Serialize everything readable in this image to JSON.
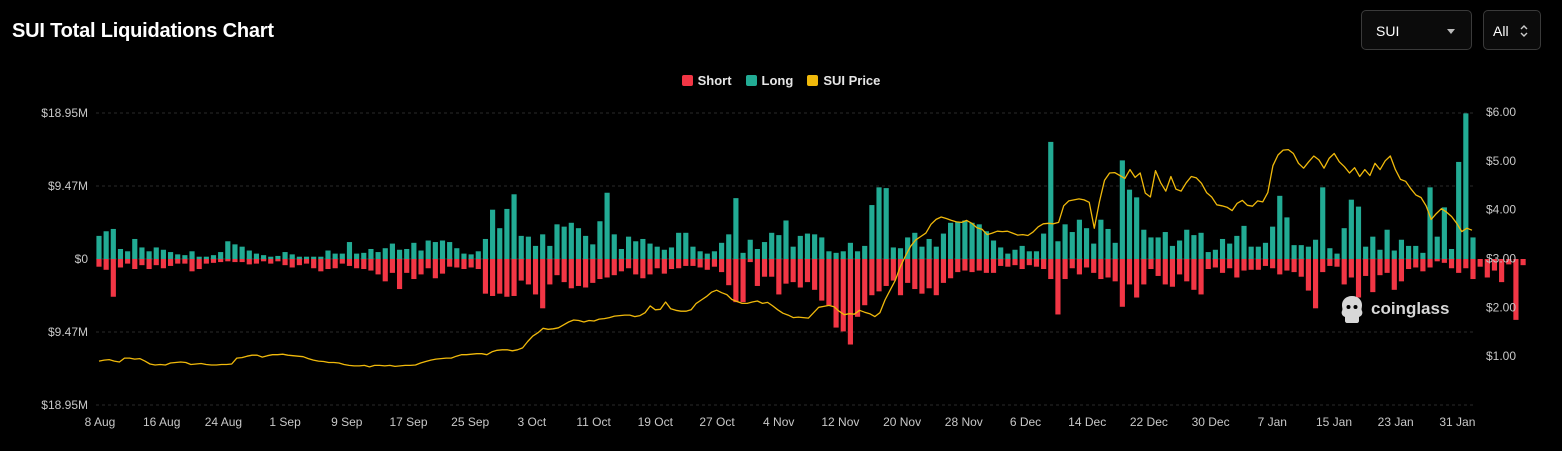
{
  "header": {
    "title": "SUI Total Liquidations Chart"
  },
  "controls": {
    "symbol_select": {
      "value": "SUI"
    },
    "range_select": {
      "value": "All"
    }
  },
  "legend": [
    {
      "label": "Short",
      "color": "#f23645"
    },
    {
      "label": "Long",
      "color": "#22ab94"
    },
    {
      "label": "SUI Price",
      "color": "#f0b90b"
    }
  ],
  "watermark": {
    "text": "coinglass"
  },
  "chart_data": {
    "type": "bar",
    "title": "SUI Total Liquidations Chart",
    "grid": true,
    "legend_position": "top-center",
    "left_axis": {
      "ylim": [
        -18.95,
        18.95
      ],
      "unit": "M",
      "ticks": [
        18.95,
        9.47,
        0,
        -9.47,
        -18.95
      ],
      "tick_labels": [
        "$18.95M",
        "$9.47M",
        "$0",
        "$9.47M",
        "$18.95M"
      ]
    },
    "right_axis": {
      "ylim": [
        0.0,
        6.0
      ],
      "ticks": [
        6,
        5,
        4,
        3,
        2,
        1
      ],
      "tick_labels": [
        "$6.00",
        "$5.00",
        "$4.00",
        "$3.00",
        "$2.00",
        "$1.00"
      ]
    },
    "x_ticks": [
      "8 Aug",
      "16 Aug",
      "24 Aug",
      "1 Sep",
      "9 Sep",
      "17 Sep",
      "25 Sep",
      "3 Oct",
      "11 Oct",
      "19 Oct",
      "27 Oct",
      "4 Nov",
      "12 Nov",
      "20 Nov",
      "28 Nov",
      "6 Dec",
      "14 Dec",
      "22 Dec",
      "30 Dec",
      "7 Jan",
      "15 Jan",
      "23 Jan",
      "31 Jan"
    ],
    "series": [
      {
        "name": "Long",
        "color": "#22ab94",
        "values": [
          3.0,
          3.6,
          3.9,
          1.3,
          1.0,
          2.6,
          1.5,
          1.0,
          1.5,
          1.2,
          0.9,
          0.6,
          0.5,
          1.0,
          0.3,
          0.3,
          0.5,
          0.9,
          2.3,
          1.9,
          1.6,
          1.1,
          0.7,
          0.5,
          0.3,
          0.4,
          0.9,
          0.6,
          0.3,
          0.3,
          0.3,
          0.3,
          1.1,
          0.7,
          0.7,
          2.2,
          0.7,
          0.8,
          1.3,
          0.9,
          1.4,
          2.0,
          1.2,
          1.3,
          2.1,
          1.1,
          2.4,
          2.2,
          2.4,
          2.2,
          1.4,
          0.7,
          0.6,
          1.0,
          2.6,
          6.4,
          4.0,
          6.5,
          8.4,
          3.0,
          2.9,
          1.7,
          3.2,
          1.7,
          4.5,
          4.2,
          4.7,
          4.0,
          3.0,
          1.9,
          4.9,
          8.6,
          3.2,
          1.3,
          2.9,
          2.3,
          2.6,
          2.0,
          1.6,
          1.2,
          1.5,
          3.4,
          3.4,
          1.6,
          1.0,
          0.7,
          1.0,
          2.1,
          3.2,
          7.9,
          0.8,
          2.5,
          1.3,
          2.2,
          3.4,
          3.1,
          5.0,
          1.6,
          3.0,
          3.3,
          3.2,
          2.8,
          1.0,
          0.8,
          1.0,
          2.1,
          1.0,
          1.7,
          7.0,
          9.3,
          9.2,
          1.5,
          1.4,
          2.8,
          3.4,
          1.6,
          2.6,
          1.6,
          3.3,
          4.7,
          4.8,
          5.0,
          4.7,
          4.5,
          3.6,
          2.4,
          1.5,
          0.7,
          1.2,
          1.7,
          1.0,
          1.0,
          3.3,
          15.2,
          2.3,
          4.5,
          3.5,
          5.1,
          4.0,
          2.0,
          5.1,
          3.9,
          2.1,
          12.8,
          9.0,
          8.0,
          3.8,
          2.8,
          2.8,
          3.5,
          1.7,
          2.4,
          3.8,
          3.1,
          3.4,
          0.9,
          1.2,
          2.6,
          2.0,
          3.0,
          4.3,
          1.6,
          1.6,
          2.1,
          4.2,
          8.2,
          5.4,
          1.8,
          1.8,
          1.6,
          2.5,
          9.3,
          1.4,
          0.7,
          4.0,
          7.7,
          6.8,
          1.6,
          2.9,
          1.2,
          3.8,
          1.1,
          2.5,
          1.7,
          1.7,
          0.8,
          9.3,
          2.9,
          6.7,
          1.3,
          12.6,
          18.9,
          2.8
        ]
      },
      {
        "name": "Short",
        "color": "#f23645",
        "values": [
          -1.0,
          -1.4,
          -4.9,
          -1.1,
          -0.6,
          -1.3,
          -0.8,
          -1.3,
          -0.8,
          -1.2,
          -0.9,
          -0.6,
          -0.6,
          -1.6,
          -1.3,
          -0.6,
          -0.5,
          -0.4,
          -0.3,
          -0.4,
          -0.4,
          -0.7,
          -0.6,
          -0.3,
          -0.6,
          -0.3,
          -0.8,
          -1.1,
          -0.8,
          -0.6,
          -1.2,
          -1.6,
          -1.3,
          -1.2,
          -0.6,
          -0.9,
          -1.2,
          -1.3,
          -1.5,
          -2.0,
          -2.9,
          -1.8,
          -3.9,
          -1.8,
          -2.6,
          -2.0,
          -1.2,
          -2.5,
          -1.9,
          -1.0,
          -1.1,
          -1.3,
          -1.1,
          -1.3,
          -4.5,
          -4.8,
          -4.5,
          -4.9,
          -4.8,
          -2.8,
          -3.3,
          -4.6,
          -6.4,
          -3.3,
          -2.1,
          -3.0,
          -3.8,
          -3.5,
          -3.7,
          -3.1,
          -2.6,
          -2.4,
          -2.1,
          -1.6,
          -1.2,
          -2.0,
          -2.5,
          -2.0,
          -1.2,
          -1.9,
          -1.3,
          -1.2,
          -0.9,
          -0.9,
          -1.1,
          -1.4,
          -1.0,
          -1.7,
          -3.4,
          -5.6,
          -5.6,
          -0.4,
          -3.5,
          -2.3,
          -2.3,
          -4.6,
          -3.2,
          -3.0,
          -3.7,
          -3.0,
          -4.0,
          -5.4,
          -6.0,
          -8.9,
          -9.4,
          -11.1,
          -7.5,
          -6.0,
          -4.7,
          -4.2,
          -3.5,
          -2.8,
          -4.7,
          -3.1,
          -3.9,
          -4.5,
          -3.8,
          -4.7,
          -3.1,
          -2.5,
          -1.7,
          -1.5,
          -1.7,
          -1.5,
          -1.8,
          -1.8,
          -0.9,
          -1.0,
          -0.8,
          -1.3,
          -0.8,
          -1.0,
          -1.3,
          -2.6,
          -7.2,
          -2.6,
          -1.2,
          -2.0,
          -1.1,
          -1.8,
          -2.6,
          -2.4,
          -2.9,
          -6.2,
          -3.3,
          -5.0,
          -3.3,
          -1.3,
          -2.2,
          -3.3,
          -3.6,
          -2.0,
          -2.9,
          -4.0,
          -4.6,
          -1.3,
          -1.1,
          -1.8,
          -1.2,
          -2.4,
          -1.5,
          -1.4,
          -1.4,
          -0.9,
          -1.2,
          -2.0,
          -1.5,
          -1.7,
          -2.3,
          -4.1,
          -6.4,
          -1.7,
          -0.9,
          -1.0,
          -3.3,
          -2.4,
          -5.0,
          -2.2,
          -4.3,
          -2.1,
          -1.8,
          -4.0,
          -2.9,
          -1.3,
          -1.1,
          -1.6,
          -1.1,
          -0.3,
          -0.5,
          -1.2,
          -1.8,
          -1.2,
          -2.6,
          -1.0,
          -2.4,
          -1.5,
          -3.0,
          -0.7,
          -7.9,
          -0.8
        ]
      },
      {
        "name": "SUI Price",
        "color": "#f0b90b",
        "axis": "right",
        "values": [
          0.9,
          0.92,
          0.93,
          0.9,
          0.88,
          0.96,
          0.96,
          0.94,
          0.95,
          0.9,
          0.84,
          0.82,
          0.83,
          0.82,
          0.86,
          0.87,
          0.88,
          0.87,
          0.83,
          0.84,
          0.85,
          0.83,
          0.82,
          0.82,
          0.83,
          0.83,
          0.84,
          0.96,
          0.97,
          1.0,
          1.02,
          1.02,
          0.98,
          1.01,
          1.03,
          1.03,
          1.04,
          1.02,
          1.01,
          1.0,
          0.99,
          0.95,
          0.92,
          0.9,
          0.89,
          0.87,
          0.87,
          0.86,
          0.83,
          0.81,
          0.8,
          0.8,
          0.81,
          0.78,
          0.81,
          0.81,
          0.8,
          0.81,
          0.79,
          0.8,
          0.81,
          0.81,
          0.82,
          0.86,
          0.89,
          0.92,
          0.94,
          0.95,
          0.96,
          0.96,
          1.0,
          1.03,
          1.03,
          1.04,
          1.05,
          1.05,
          1.03,
          1.09,
          1.12,
          1.13,
          1.13,
          1.11,
          1.13,
          1.17,
          1.3,
          1.41,
          1.48,
          1.57,
          1.55,
          1.56,
          1.58,
          1.64,
          1.7,
          1.74,
          1.73,
          1.7,
          1.73,
          1.72,
          1.76,
          1.77,
          1.79,
          1.82,
          1.83,
          1.84,
          1.84,
          1.81,
          1.83,
          1.89,
          2.03,
          1.95,
          1.96,
          2.11,
          1.97,
          1.94,
          1.92,
          1.92,
          1.95,
          2.08,
          2.15,
          2.22,
          2.31,
          2.35,
          2.3,
          2.26,
          2.16,
          2.12,
          2.08,
          2.08,
          2.11,
          2.13,
          2.08,
          2.1,
          2.03,
          1.95,
          1.88,
          1.84,
          1.79,
          1.8,
          1.79,
          1.78,
          1.89,
          2.0,
          2.02,
          2.04,
          2.01,
          1.92,
          1.85,
          1.87,
          1.86,
          1.94,
          1.9,
          1.87,
          1.81,
          1.89,
          2.15,
          2.35,
          2.55,
          2.83,
          3.05,
          3.25,
          3.38,
          3.45,
          3.52,
          3.7,
          3.8,
          3.85,
          3.82,
          3.78,
          3.75,
          3.74,
          3.78,
          3.72,
          3.63,
          3.6,
          3.49,
          3.52,
          3.56,
          3.55,
          3.56,
          3.52,
          3.48,
          3.49,
          3.47,
          3.54,
          3.65,
          3.71,
          3.72,
          3.71,
          3.74,
          4.08,
          4.18,
          4.2,
          4.22,
          4.2,
          4.15,
          3.62,
          4.16,
          4.6,
          4.75,
          4.76,
          4.7,
          4.64,
          4.82,
          4.66,
          4.75,
          4.34,
          4.26,
          4.8,
          4.55,
          4.38,
          4.68,
          4.42,
          4.38,
          4.55,
          4.68,
          4.65,
          4.54,
          4.35,
          4.26,
          4.1,
          4.08,
          4.05,
          3.98,
          4.13,
          4.19,
          4.09,
          4.07,
          4.18,
          4.16,
          4.35,
          4.9,
          5.12,
          5.22,
          5.23,
          5.15,
          4.95,
          4.85,
          4.98,
          5.1,
          5.02,
          4.85,
          5.05,
          5.15,
          4.98,
          4.88,
          4.75,
          4.86,
          4.68,
          4.82,
          4.7,
          4.95,
          4.82,
          5.0,
          5.1,
          4.82,
          4.62,
          4.58,
          4.43,
          4.3,
          4.25,
          4.08,
          3.8,
          3.92,
          4.02,
          3.95,
          3.86,
          3.72,
          3.55,
          3.62,
          3.58
        ]
      }
    ]
  }
}
